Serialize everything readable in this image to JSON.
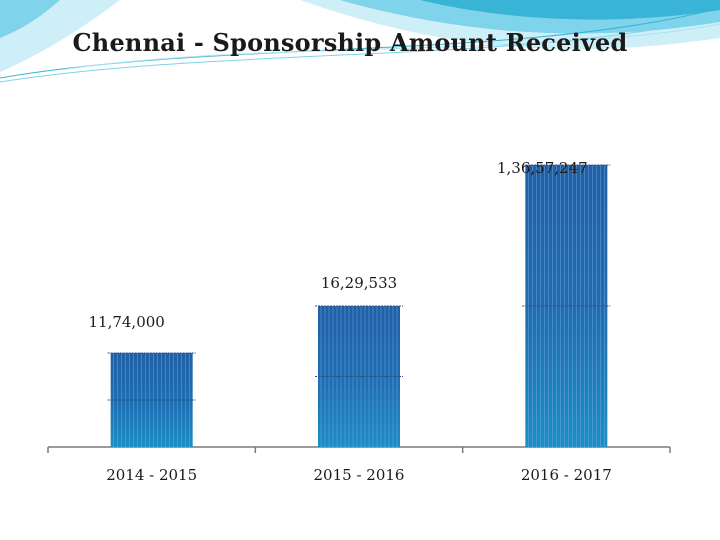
{
  "colors": {
    "bar_top": "#1f5fa8",
    "bar_bottom": "#1b8ec4",
    "bar_stripe": "#8fb8df",
    "axis": "#7a7a7a",
    "deco_light": "#cfeff8",
    "deco_mid": "#7fd3ea",
    "deco_dark": "#39b3d6"
  },
  "chart_data": {
    "type": "bar",
    "title": "Chennai - Sponsorship Amount Received",
    "categories": [
      "2014 - 2015",
      "2015 - 2016",
      "2016 - 2017"
    ],
    "values": [
      1174000,
      1629533,
      13657247
    ],
    "data_labels": [
      "11,74,000",
      "16,29,533",
      "1,36,57,247"
    ],
    "xlabel": "",
    "ylabel": "",
    "legend": "none",
    "grid": false
  }
}
